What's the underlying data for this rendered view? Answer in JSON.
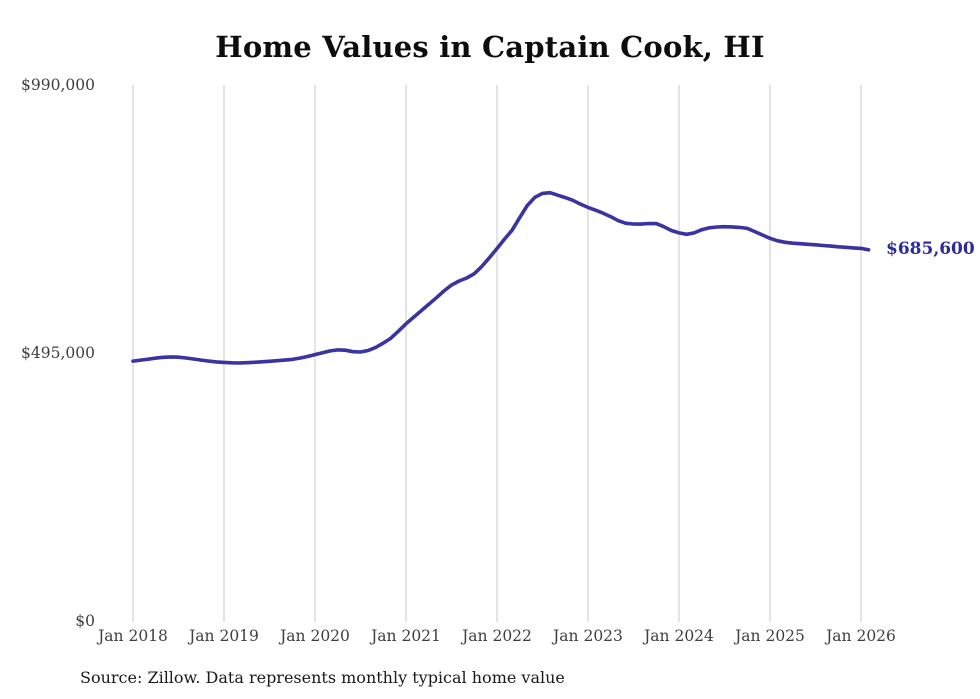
{
  "title": "Home Values in Captain Cook, HI",
  "source_note": "Source: Zillow. Data represents monthly typical home value",
  "end_label": "$685,600",
  "colors": {
    "line": "#3a34a3",
    "end_label_text": "#2d2b9b",
    "grid": "#c9c9c9",
    "axis_text": "#3f3f3f",
    "title_text": "#0d0d0d"
  },
  "chart_data": {
    "type": "line",
    "title": "Home Values in Captain Cook, HI",
    "xlabel": "",
    "ylabel": "",
    "unit": "USD",
    "legend": "none",
    "grid": "vertical-only",
    "ylim": [
      0,
      990000
    ],
    "y_ticks": [
      0,
      495000,
      990000
    ],
    "y_tick_labels": [
      "$0",
      "$495,000",
      "$990,000"
    ],
    "x_tick_labels": [
      "Jan 2018",
      "Jan 2019",
      "Jan 2020",
      "Jan 2021",
      "Jan 2022",
      "Jan 2023",
      "Jan 2024",
      "Jan 2025",
      "Jan 2026"
    ],
    "x_start_month": "2018-01",
    "x_end_month": "2026-02",
    "months_per_point": 1,
    "end_value": 685600,
    "end_value_label": "$685,600",
    "series": [
      {
        "name": "Typical home value",
        "values": [
          480000,
          481800,
          483600,
          485500,
          487000,
          487800,
          487200,
          485800,
          483900,
          481900,
          480000,
          478600,
          477600,
          476900,
          476600,
          477000,
          477800,
          478700,
          479700,
          480700,
          481800,
          483200,
          485600,
          488600,
          492000,
          495600,
          498800,
          500800,
          500200,
          497400,
          496800,
          499600,
          505400,
          513200,
          522400,
          535200,
          549000,
          561000,
          573000,
          585000,
          597000,
          609500,
          620500,
          628000,
          633500,
          641500,
          655000,
          671000,
          688000,
          705500,
          722000,
          745500,
          767500,
          782500,
          789800,
          791000,
          786500,
          782000,
          777000,
          770000,
          764000,
          758800,
          753200,
          746800,
          739400,
          734600,
          733200,
          733000,
          734200,
          734000,
          728200,
          721200,
          716800,
          714200,
          716800,
          722800,
          726200,
          727800,
          728200,
          728000,
          727000,
          725200,
          719200,
          713000,
          706800,
          702200,
          699400,
          697800,
          696800,
          695800,
          694800,
          693600,
          692400,
          691200,
          690200,
          689200,
          688200,
          685600
        ]
      }
    ]
  }
}
